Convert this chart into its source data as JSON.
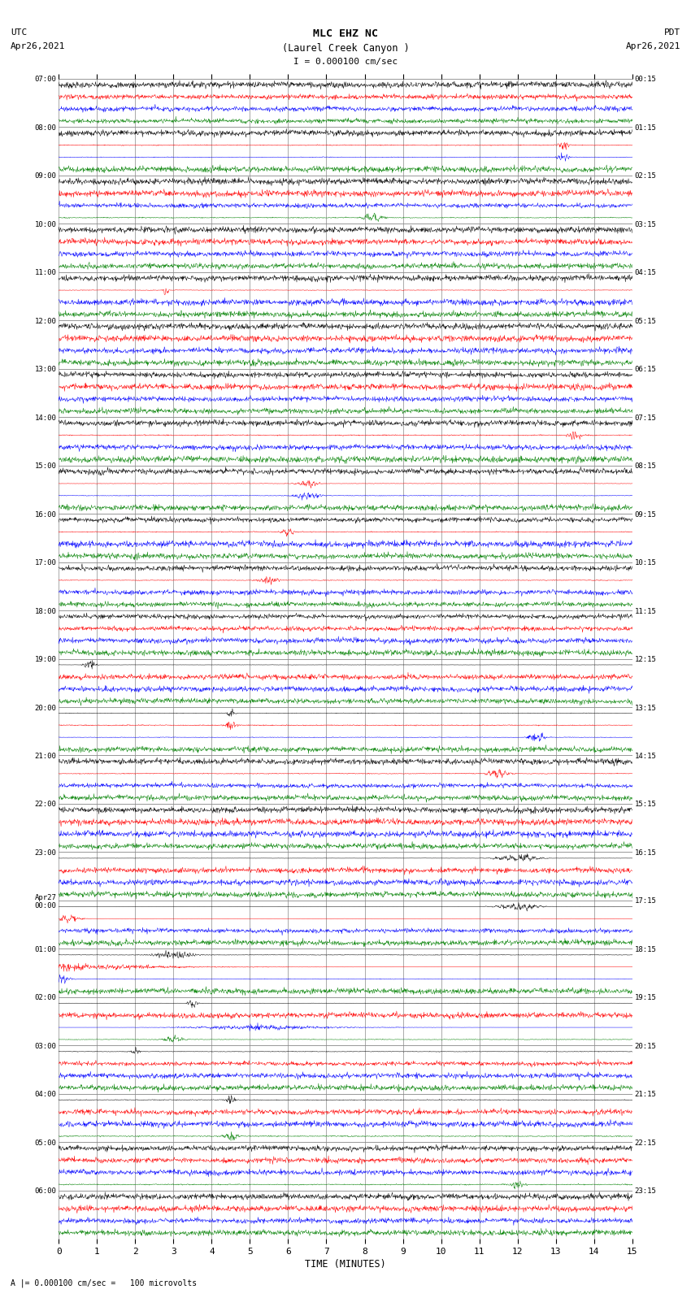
{
  "title_line1": "MLC EHZ NC",
  "title_line2": "(Laurel Creek Canyon )",
  "title_line3": "I = 0.000100 cm/sec",
  "utc_label": "UTC",
  "utc_date": "Apr26,2021",
  "pdt_label": "PDT",
  "pdt_date": "Apr26,2021",
  "xlabel": "TIME (MINUTES)",
  "bottom_label": "A |= 0.000100 cm/sec =   100 microvolts",
  "xmin": 0,
  "xmax": 15,
  "row_colors": [
    "black",
    "red",
    "blue",
    "green"
  ],
  "background_color": "white",
  "grid_color": "#888888",
  "utc_hour_labels": [
    "07:00",
    "08:00",
    "09:00",
    "10:00",
    "11:00",
    "12:00",
    "13:00",
    "14:00",
    "15:00",
    "16:00",
    "17:00",
    "18:00",
    "19:00",
    "20:00",
    "21:00",
    "22:00",
    "23:00",
    "Apr27\n00:00",
    "01:00",
    "02:00",
    "03:00",
    "04:00",
    "05:00",
    "06:00"
  ],
  "pdt_hour_labels": [
    "00:15",
    "01:15",
    "02:15",
    "03:15",
    "04:15",
    "05:15",
    "06:15",
    "07:15",
    "08:15",
    "09:15",
    "10:15",
    "11:15",
    "12:15",
    "13:15",
    "14:15",
    "15:15",
    "16:15",
    "17:15",
    "18:15",
    "19:15",
    "20:15",
    "21:15",
    "22:15",
    "23:15"
  ],
  "n_hours": 24,
  "traces_per_hour": 4,
  "fig_width": 8.5,
  "fig_height": 16.13,
  "noise_base": 0.018,
  "special_events": [
    {
      "row_abs": 5,
      "time": 13.2,
      "amp": 0.28,
      "dur": 0.5
    },
    {
      "row_abs": 6,
      "time": 13.2,
      "amp": 0.45,
      "dur": 0.4
    },
    {
      "row_abs": 11,
      "time": 8.2,
      "amp": 0.35,
      "dur": 0.8
    },
    {
      "row_abs": 17,
      "time": 2.8,
      "amp": 0.95,
      "dur": 0.15
    },
    {
      "row_abs": 29,
      "time": 13.5,
      "amp": 0.28,
      "dur": 0.5
    },
    {
      "row_abs": 33,
      "time": 6.5,
      "amp": 0.55,
      "dur": 0.8
    },
    {
      "row_abs": 34,
      "time": 6.5,
      "amp": 0.35,
      "dur": 1.0
    },
    {
      "row_abs": 37,
      "time": 6.0,
      "amp": 0.28,
      "dur": 0.5
    },
    {
      "row_abs": 41,
      "time": 5.5,
      "amp": 0.28,
      "dur": 0.8
    },
    {
      "row_abs": 48,
      "time": 0.8,
      "amp": 1.8,
      "dur": 0.4
    },
    {
      "row_abs": 52,
      "time": 4.5,
      "amp": 0.45,
      "dur": 0.3
    },
    {
      "row_abs": 53,
      "time": 4.5,
      "amp": 0.38,
      "dur": 0.4
    },
    {
      "row_abs": 54,
      "time": 12.5,
      "amp": 0.55,
      "dur": 0.6
    },
    {
      "row_abs": 57,
      "time": 11.5,
      "amp": 0.38,
      "dur": 0.8
    },
    {
      "row_abs": 64,
      "time": 12.0,
      "amp": 1.2,
      "dur": 1.5
    },
    {
      "row_abs": 68,
      "time": 12.0,
      "amp": 1.8,
      "dur": 1.5
    },
    {
      "row_abs": 69,
      "time": 0.3,
      "amp": 1.6,
      "dur": 0.8
    },
    {
      "row_abs": 72,
      "time": 3.0,
      "amp": 0.45,
      "dur": 1.5
    },
    {
      "row_abs": 73,
      "time": 0.0,
      "amp": 4.5,
      "dur": 7.0
    },
    {
      "row_abs": 74,
      "time": 0.0,
      "amp": 0.65,
      "dur": 0.8
    },
    {
      "row_abs": 76,
      "time": 3.5,
      "amp": 1.2,
      "dur": 0.3
    },
    {
      "row_abs": 78,
      "time": 5.0,
      "amp": 3.5,
      "dur": 5.0
    },
    {
      "row_abs": 79,
      "time": 3.0,
      "amp": 0.4,
      "dur": 0.8
    },
    {
      "row_abs": 80,
      "time": 2.0,
      "amp": 0.5,
      "dur": 0.3
    },
    {
      "row_abs": 84,
      "time": 4.5,
      "amp": 0.45,
      "dur": 0.3
    },
    {
      "row_abs": 87,
      "time": 4.5,
      "amp": 0.28,
      "dur": 0.5
    },
    {
      "row_abs": 91,
      "time": 12.0,
      "amp": 0.28,
      "dur": 0.5
    }
  ]
}
